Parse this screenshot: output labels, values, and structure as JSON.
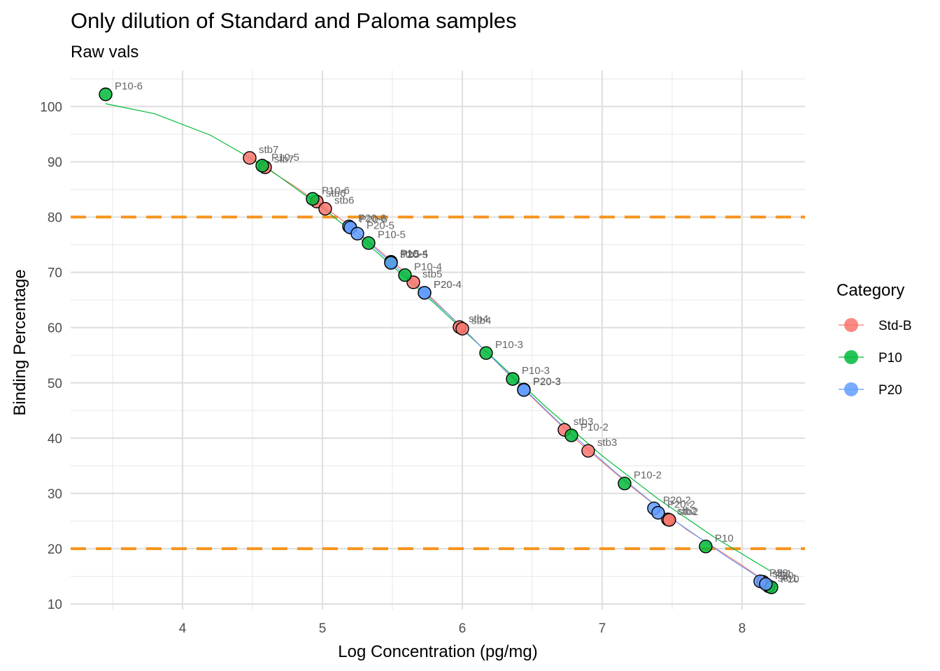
{
  "chart_data": {
    "type": "scatter",
    "title": "Only dilution of Standard and Paloma samples",
    "subtitle": "Raw vals",
    "xlabel": "Log Concentration (pg/mg)",
    "ylabel": "Binding Percentage",
    "xlim": [
      3.2,
      8.45
    ],
    "ylim": [
      9,
      106.5
    ],
    "x_ticks": [
      4,
      5,
      6,
      7,
      8
    ],
    "y_ticks": [
      10,
      20,
      30,
      40,
      50,
      60,
      70,
      80,
      90,
      100
    ],
    "grid": true,
    "reference_lines": [
      {
        "y": 80,
        "color": "#F7941D",
        "style": "dashed"
      },
      {
        "y": 20,
        "color": "#F7941D",
        "style": "dashed"
      }
    ],
    "legend": {
      "title": "Category",
      "position": "right",
      "entries": [
        "Std-B",
        "P10",
        "P20"
      ]
    },
    "series": [
      {
        "name": "Std-B",
        "color": "#F8766D",
        "points": [
          {
            "x": 4.48,
            "y": 90.7,
            "label": "stb7"
          },
          {
            "x": 4.59,
            "y": 89.0,
            "label": "stb7"
          },
          {
            "x": 4.96,
            "y": 82.8,
            "label": "stb6"
          },
          {
            "x": 5.02,
            "y": 81.5,
            "label": "stb6"
          },
          {
            "x": 5.49,
            "y": 71.8,
            "label": "stb5"
          },
          {
            "x": 5.65,
            "y": 68.2,
            "label": "stb5"
          },
          {
            "x": 5.98,
            "y": 60.1,
            "label": "stb4"
          },
          {
            "x": 6.0,
            "y": 59.8,
            "label": "stb4"
          },
          {
            "x": 6.73,
            "y": 41.5,
            "label": "stb3"
          },
          {
            "x": 6.9,
            "y": 37.7,
            "label": "stb3"
          },
          {
            "x": 7.47,
            "y": 25.3,
            "label": "stb2"
          },
          {
            "x": 7.48,
            "y": 25.2,
            "label": "stb2"
          },
          {
            "x": 8.15,
            "y": 14.0,
            "label": "stb1"
          },
          {
            "x": 8.19,
            "y": 13.2,
            "label": "stb1"
          }
        ],
        "fit_curve": [
          [
            4.48,
            90.7
          ],
          [
            4.8,
            85.6
          ],
          [
            5.2,
            78.4
          ],
          [
            5.6,
            69.8
          ],
          [
            6.0,
            60.0
          ],
          [
            6.4,
            49.8
          ],
          [
            6.8,
            40.0
          ],
          [
            7.2,
            31.4
          ],
          [
            7.6,
            23.5
          ],
          [
            8.0,
            17.0
          ],
          [
            8.2,
            13.5
          ]
        ]
      },
      {
        "name": "P10",
        "color": "#00BA38",
        "points": [
          {
            "x": 3.45,
            "y": 102.2,
            "label": "P10-6"
          },
          {
            "x": 4.57,
            "y": 89.3,
            "label": "P10-5"
          },
          {
            "x": 4.93,
            "y": 83.3,
            "label": "P10-6"
          },
          {
            "x": 5.33,
            "y": 75.3,
            "label": "P10-5"
          },
          {
            "x": 5.49,
            "y": 71.9,
            "label": "P10-4"
          },
          {
            "x": 5.59,
            "y": 69.5,
            "label": "P10-4"
          },
          {
            "x": 6.17,
            "y": 55.4,
            "label": "P10-3"
          },
          {
            "x": 6.36,
            "y": 50.7,
            "label": "P10-3"
          },
          {
            "x": 6.78,
            "y": 40.5,
            "label": "P10-2"
          },
          {
            "x": 7.16,
            "y": 31.8,
            "label": "P10-2"
          },
          {
            "x": 7.74,
            "y": 20.4,
            "label": "P10"
          },
          {
            "x": 8.21,
            "y": 13.0,
            "label": "P10"
          }
        ],
        "fit_curve": [
          [
            3.45,
            100.5
          ],
          [
            3.8,
            98.7
          ],
          [
            4.2,
            94.8
          ],
          [
            4.6,
            89.0
          ],
          [
            5.0,
            81.7
          ],
          [
            5.4,
            73.4
          ],
          [
            5.8,
            64.4
          ],
          [
            6.2,
            55.0
          ],
          [
            6.6,
            45.6
          ],
          [
            7.0,
            36.8
          ],
          [
            7.4,
            29.0
          ],
          [
            7.8,
            22.1
          ],
          [
            8.2,
            16.0
          ]
        ]
      },
      {
        "name": "P20",
        "color": "#619CFF",
        "points": [
          {
            "x": 5.19,
            "y": 78.3,
            "label": "P20-6"
          },
          {
            "x": 5.2,
            "y": 78.1,
            "label": "P20-6"
          },
          {
            "x": 5.25,
            "y": 77.0,
            "label": "P20-5"
          },
          {
            "x": 5.49,
            "y": 71.7,
            "label": "P20-5"
          },
          {
            "x": 5.73,
            "y": 66.3,
            "label": "P20-4"
          },
          {
            "x": 5.73,
            "y": 66.3,
            "label": "P20-4"
          },
          {
            "x": 6.44,
            "y": 48.8,
            "label": "P20-3"
          },
          {
            "x": 6.44,
            "y": 48.7,
            "label": "P20-3"
          },
          {
            "x": 7.37,
            "y": 27.3,
            "label": "P20-2"
          },
          {
            "x": 7.4,
            "y": 26.5,
            "label": "P20-2"
          },
          {
            "x": 8.13,
            "y": 14.1,
            "label": "P20"
          },
          {
            "x": 8.17,
            "y": 13.6,
            "label": "P20"
          }
        ],
        "fit_curve": [
          [
            5.19,
            78.5
          ],
          [
            5.5,
            71.6
          ],
          [
            5.9,
            62.4
          ],
          [
            6.3,
            52.4
          ],
          [
            6.7,
            42.6
          ],
          [
            7.1,
            33.7
          ],
          [
            7.5,
            25.4
          ],
          [
            7.9,
            18.4
          ],
          [
            8.17,
            14.0
          ]
        ]
      }
    ]
  }
}
